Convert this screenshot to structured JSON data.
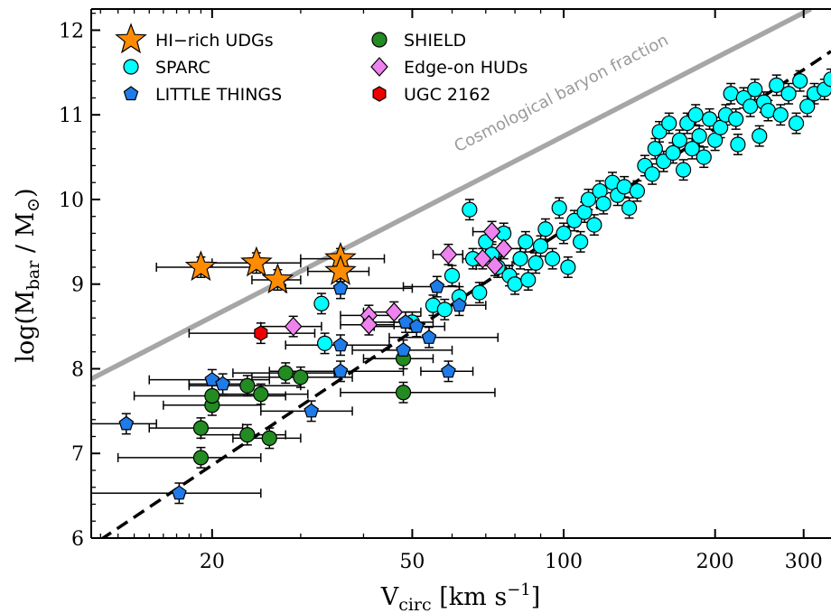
{
  "chart_data": {
    "type": "scatter",
    "xlabel": "V_circ [km s^-1]",
    "ylabel": "log(M_bar / M_⊙)",
    "xscale": "log",
    "xlim": [
      11.5,
      340
    ],
    "ylim": [
      6,
      12.25
    ],
    "x_ticks": [
      20,
      50,
      100,
      200,
      300
    ],
    "y_ticks": [
      6,
      7,
      8,
      9,
      10,
      11,
      12
    ],
    "grid": false,
    "legend_position": "top-left",
    "legend": [
      "HI−rich UDGs",
      "SPARC",
      "LITTLE THINGS",
      "SHIELD",
      "Edge-on HUDs",
      "UGC 2162"
    ],
    "lines": [
      {
        "name": "Cosmological baryon fraction",
        "color": "#a6a6a6",
        "style": "solid",
        "points": [
          [
            11.5,
            7.88
          ],
          [
            310,
            12.25
          ]
        ]
      },
      {
        "name": "",
        "color": "#000000",
        "style": "dashed",
        "points": [
          [
            12,
            5.98
          ],
          [
            340,
            11.75
          ]
        ]
      }
    ],
    "annotations": [
      {
        "text": "Cosmological baryon fraction",
        "x": 100,
        "y": 11.2
      }
    ],
    "series": [
      {
        "name": "HI−rich UDGs",
        "marker": "star",
        "color": "#ff8c00",
        "points": [
          [
            19,
            9.2,
            15.5,
            24
          ],
          [
            24.5,
            9.25,
            20,
            30
          ],
          [
            27,
            9.05,
            24,
            30
          ],
          [
            36,
            9.3,
            30,
            44
          ],
          [
            36,
            9.15,
            31,
            41
          ]
        ]
      },
      {
        "name": "SPARC",
        "marker": "circle",
        "color": "#00ffff",
        "points": [
          [
            33,
            8.77
          ],
          [
            33.5,
            8.3
          ],
          [
            50,
            8.55
          ],
          [
            55,
            8.75
          ],
          [
            58,
            8.7
          ],
          [
            60,
            9.1
          ],
          [
            62,
            8.85
          ],
          [
            65,
            9.88
          ],
          [
            66,
            9.3
          ],
          [
            68,
            8.9
          ],
          [
            70,
            9.5
          ],
          [
            72,
            9.35
          ],
          [
            74,
            9.2
          ],
          [
            76,
            9.6
          ],
          [
            78,
            9.1
          ],
          [
            80,
            9.0
          ],
          [
            82,
            9.3
          ],
          [
            84,
            9.5
          ],
          [
            85,
            9.05
          ],
          [
            88,
            9.25
          ],
          [
            90,
            9.45
          ],
          [
            92,
            9.65
          ],
          [
            95,
            9.3
          ],
          [
            98,
            9.9
          ],
          [
            100,
            9.6
          ],
          [
            102,
            9.2
          ],
          [
            105,
            9.75
          ],
          [
            108,
            9.5
          ],
          [
            110,
            9.85
          ],
          [
            112,
            10.0
          ],
          [
            115,
            9.7
          ],
          [
            118,
            10.1
          ],
          [
            120,
            9.95
          ],
          [
            125,
            10.2
          ],
          [
            128,
            10.05
          ],
          [
            132,
            10.15
          ],
          [
            135,
            9.9
          ],
          [
            140,
            10.1
          ],
          [
            145,
            10.4
          ],
          [
            150,
            10.3
          ],
          [
            152,
            10.6
          ],
          [
            155,
            10.8
          ],
          [
            158,
            10.45
          ],
          [
            162,
            10.9
          ],
          [
            165,
            10.55
          ],
          [
            170,
            10.7
          ],
          [
            173,
            10.35
          ],
          [
            176,
            10.9
          ],
          [
            180,
            10.6
          ],
          [
            183,
            11.0
          ],
          [
            186,
            10.75
          ],
          [
            190,
            10.5
          ],
          [
            195,
            10.95
          ],
          [
            200,
            10.7
          ],
          [
            205,
            10.85
          ],
          [
            210,
            11.0
          ],
          [
            215,
            11.25
          ],
          [
            220,
            10.95
          ],
          [
            222,
            10.65
          ],
          [
            228,
            11.2
          ],
          [
            235,
            11.1
          ],
          [
            240,
            11.3
          ],
          [
            245,
            10.75
          ],
          [
            250,
            11.15
          ],
          [
            255,
            11.05
          ],
          [
            265,
            11.35
          ],
          [
            270,
            11.0
          ],
          [
            280,
            11.25
          ],
          [
            290,
            10.9
          ],
          [
            295,
            11.4
          ],
          [
            305,
            11.1
          ],
          [
            315,
            11.25
          ],
          [
            330,
            11.3
          ],
          [
            340,
            11.42
          ]
        ]
      },
      {
        "name": "LITTLE THINGS",
        "marker": "pentagon",
        "color": "#1f7be8",
        "points": [
          [
            13.5,
            7.35,
            11.5,
            15.5
          ],
          [
            17.2,
            6.53,
            11.5,
            25
          ],
          [
            20,
            7.87,
            15,
            26
          ],
          [
            21,
            7.82,
            18,
            24
          ],
          [
            31.5,
            7.5,
            25,
            38
          ],
          [
            36,
            8.28,
            28,
            45
          ],
          [
            36,
            7.97,
            26,
            48
          ],
          [
            36,
            8.95,
            28,
            50
          ],
          [
            48,
            8.22,
            38,
            60
          ],
          [
            48.5,
            8.55,
            40,
            55
          ],
          [
            51,
            8.5,
            42,
            58
          ],
          [
            54,
            8.37,
            45,
            74
          ],
          [
            56,
            8.97,
            48,
            62
          ],
          [
            59,
            7.97,
            52,
            66
          ],
          [
            62,
            8.75,
            54,
            70
          ]
        ]
      },
      {
        "name": "SHIELD",
        "marker": "circle",
        "color": "#228b22",
        "points": [
          [
            19,
            6.95,
            13,
            25
          ],
          [
            19,
            7.3,
            15,
            23
          ],
          [
            20,
            7.57,
            16,
            25
          ],
          [
            20,
            7.68,
            14,
            28
          ],
          [
            23.5,
            7.8,
            18,
            30
          ],
          [
            23.5,
            7.22,
            19,
            28
          ],
          [
            25,
            7.7,
            20,
            31
          ],
          [
            26,
            7.18,
            22,
            30
          ],
          [
            28,
            7.95,
            22,
            35
          ],
          [
            30,
            7.9,
            24,
            38
          ],
          [
            48,
            8.12,
            40,
            55
          ],
          [
            48,
            7.72,
            36,
            73
          ]
        ]
      },
      {
        "name": "Edge-on HUDs",
        "marker": "diamond",
        "color": "#ee82ee",
        "points": [
          [
            29,
            8.5,
            25,
            33
          ],
          [
            41,
            8.63,
            36,
            46
          ],
          [
            41,
            8.52,
            36,
            46
          ],
          [
            46,
            8.67,
            40,
            52
          ],
          [
            59,
            9.35,
            55,
            63
          ],
          [
            69,
            9.3,
            63,
            75
          ],
          [
            72,
            9.62,
            66,
            78
          ],
          [
            73,
            9.22,
            67,
            79
          ],
          [
            76,
            9.42,
            70,
            82
          ]
        ]
      },
      {
        "name": "UGC 2162",
        "marker": "hexagon",
        "color": "#ee0000",
        "points": [
          [
            25,
            8.42,
            18,
            32
          ]
        ]
      }
    ]
  }
}
